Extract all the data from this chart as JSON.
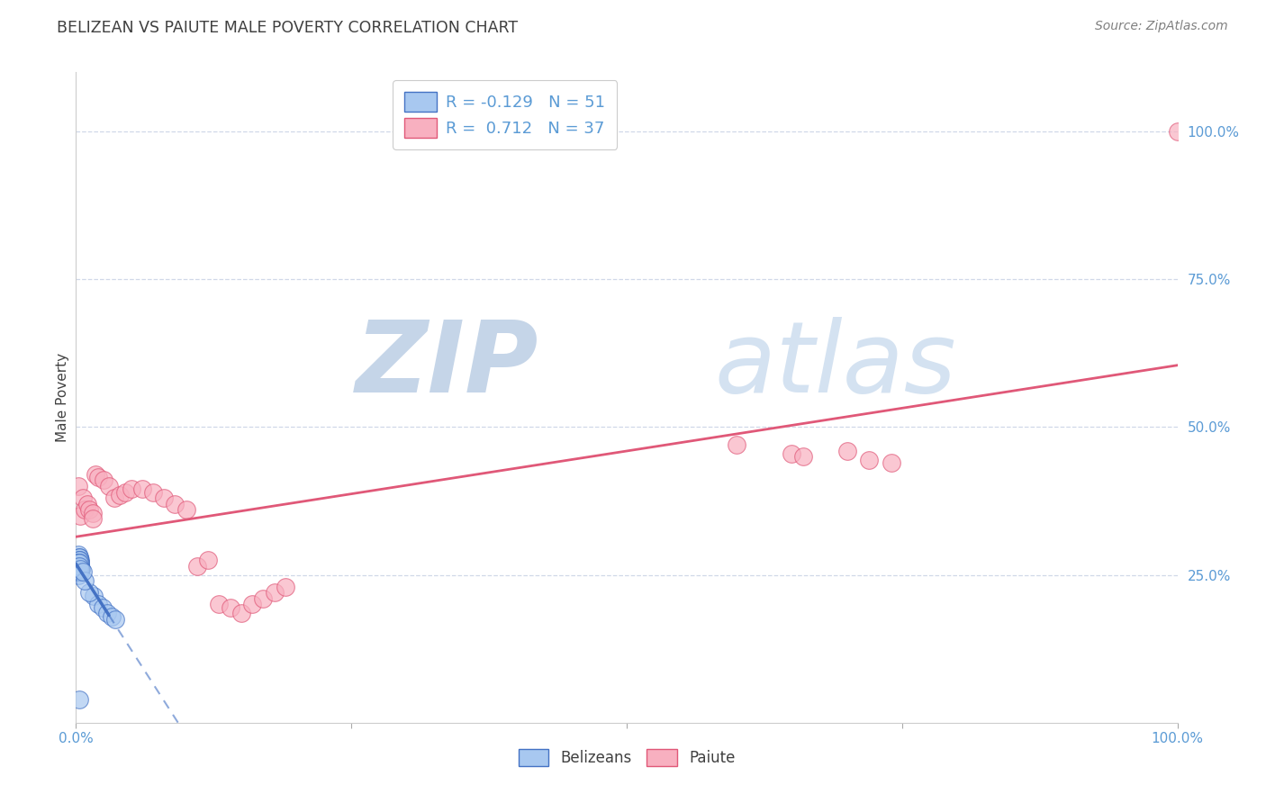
{
  "title": "BELIZEAN VS PAIUTE MALE POVERTY CORRELATION CHART",
  "source": "Source: ZipAtlas.com",
  "ylabel": "Male Poverty",
  "legend_label1": "Belizeans",
  "legend_label2": "Paiute",
  "r_belizean": -0.129,
  "n_belizean": 51,
  "r_paiute": 0.712,
  "n_paiute": 37,
  "color_belizean": "#a8c8f0",
  "color_paiute": "#f8b0c0",
  "line_color_belizean": "#4472c4",
  "line_color_paiute": "#e05878",
  "title_color": "#404040",
  "axis_label_color": "#404040",
  "tick_color": "#5b9bd5",
  "source_color": "#808080",
  "grid_color": "#d0d8e8",
  "belizean_x": [
    0.002,
    0.003,
    0.004,
    0.003,
    0.005,
    0.004,
    0.003,
    0.004,
    0.005,
    0.003,
    0.002,
    0.003,
    0.004,
    0.003,
    0.004,
    0.003,
    0.002,
    0.003,
    0.004,
    0.003,
    0.004,
    0.003,
    0.004,
    0.003,
    0.004,
    0.003,
    0.002,
    0.003,
    0.002,
    0.003,
    0.004,
    0.003,
    0.003,
    0.002,
    0.003,
    0.002,
    0.003,
    0.003,
    0.004,
    0.003,
    0.004,
    0.016,
    0.02,
    0.024,
    0.028,
    0.032,
    0.036,
    0.012,
    0.008,
    0.006,
    0.003
  ],
  "belizean_y": [
    0.285,
    0.27,
    0.265,
    0.28,
    0.26,
    0.275,
    0.265,
    0.27,
    0.26,
    0.275,
    0.25,
    0.28,
    0.265,
    0.27,
    0.255,
    0.275,
    0.26,
    0.265,
    0.27,
    0.255,
    0.265,
    0.26,
    0.27,
    0.265,
    0.26,
    0.275,
    0.255,
    0.265,
    0.27,
    0.26,
    0.255,
    0.265,
    0.26,
    0.27,
    0.255,
    0.265,
    0.26,
    0.27,
    0.255,
    0.265,
    0.26,
    0.215,
    0.2,
    0.195,
    0.185,
    0.18,
    0.175,
    0.22,
    0.24,
    0.255,
    0.04
  ],
  "paiute_x": [
    0.002,
    0.004,
    0.006,
    0.008,
    0.01,
    0.012,
    0.015,
    0.015,
    0.018,
    0.02,
    0.025,
    0.03,
    0.035,
    0.04,
    0.045,
    0.05,
    0.06,
    0.07,
    0.08,
    0.09,
    0.1,
    0.11,
    0.12,
    0.13,
    0.14,
    0.15,
    0.16,
    0.17,
    0.18,
    0.19,
    0.6,
    0.65,
    0.66,
    0.7,
    0.72,
    0.74,
    1.0
  ],
  "paiute_y": [
    0.4,
    0.35,
    0.38,
    0.36,
    0.37,
    0.36,
    0.355,
    0.345,
    0.42,
    0.415,
    0.41,
    0.4,
    0.38,
    0.385,
    0.39,
    0.395,
    0.395,
    0.39,
    0.38,
    0.37,
    0.36,
    0.265,
    0.275,
    0.2,
    0.195,
    0.185,
    0.2,
    0.21,
    0.22,
    0.23,
    0.47,
    0.455,
    0.45,
    0.46,
    0.445,
    0.44,
    1.0
  ],
  "xlim": [
    0.0,
    1.0
  ],
  "ylim": [
    0.0,
    1.1
  ],
  "ytick_positions": [
    0.25,
    0.5,
    0.75,
    1.0
  ],
  "ytick_labels": [
    "25.0%",
    "50.0%",
    "75.0%",
    "100.0%"
  ],
  "xtick_positions": [
    0.0,
    0.25,
    0.5,
    0.75,
    1.0
  ],
  "xtick_labels": [
    "0.0%",
    "",
    "",
    "",
    "100.0%"
  ]
}
